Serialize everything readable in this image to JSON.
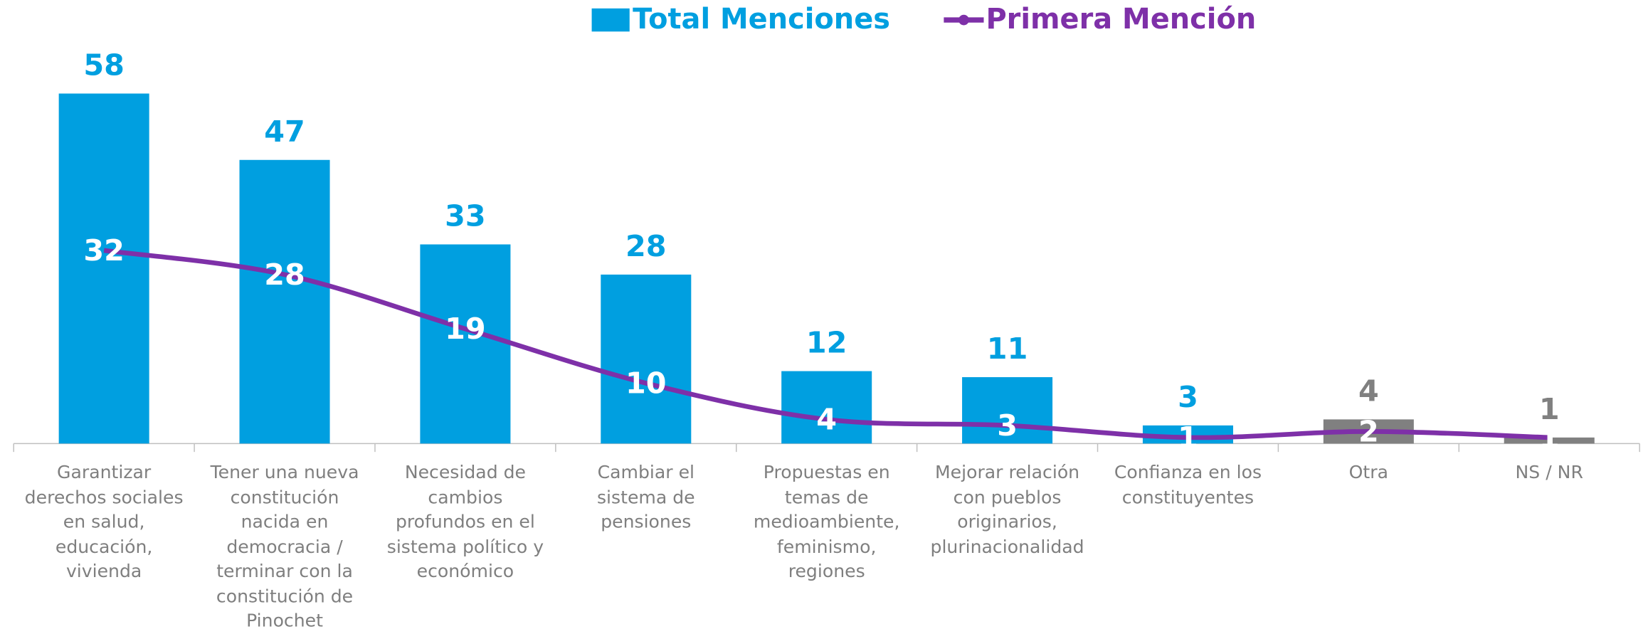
{
  "chart_data": {
    "type": "bar",
    "categories": [
      "Garantizar\nderechos sociales\nen salud,\neducación,\nvivienda",
      "Tener una nueva\nconstitución\nnacida en\ndemocracia /\nterminar con la\nconstitución de\nPinochet",
      "Necesidad de\ncambios\nprofundos en el\nsistema político y\neconómico",
      "Cambiar el\nsistema de\npensiones",
      "Propuestas en\ntemas de\nmedioambiente,\nfeminismo,\nregiones",
      "Mejorar relación\ncon pueblos\noriginarios,\nplurinacionalidad",
      "Confianza en los\nconstituyentes",
      "Otra",
      "NS / NR"
    ],
    "series": [
      {
        "name": "Total Menciones",
        "type": "bar",
        "color": "#009fe0",
        "values": [
          58,
          47,
          33,
          28,
          12,
          11,
          3,
          4,
          1
        ],
        "colors": [
          "#009fe0",
          "#009fe0",
          "#009fe0",
          "#009fe0",
          "#009fe0",
          "#009fe0",
          "#009fe0",
          "#808080",
          "#808080"
        ]
      },
      {
        "name": "Primera Mención",
        "type": "line",
        "color": "#7e30a8",
        "values": [
          32,
          28,
          19,
          10,
          4,
          3,
          1,
          2,
          1
        ]
      }
    ]
  }
}
